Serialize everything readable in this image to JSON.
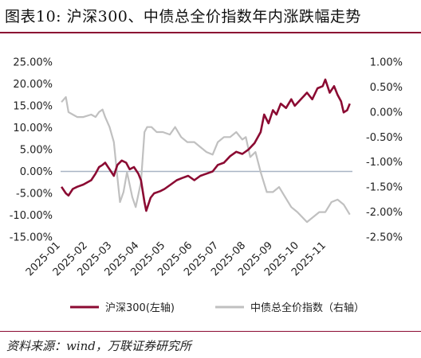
{
  "header": {
    "title": "图表10:  沪深300、中债总全价指数年内涨跌幅走势"
  },
  "footer": {
    "source": "资料来源：wind，万联证券研究所"
  },
  "colors": {
    "hs300": "#8b0a32",
    "bond": "#c0c0c0",
    "zero_line": "#a8b4c4",
    "rule": "#8b0a32"
  },
  "chart_data": {
    "type": "line",
    "x_ticks": [
      "2025-01",
      "2025-02",
      "2025-03",
      "2025-04",
      "2025-05",
      "2025-06",
      "2025-07",
      "2025-08",
      "2025-09",
      "2025-10",
      "2025-11"
    ],
    "y_left": {
      "ticks": [
        "25.00%",
        "20.00%",
        "15.00%",
        "10.00%",
        "5.00%",
        "0.00%",
        "-5.00%",
        "-10.00%",
        "-15.00%"
      ],
      "ylim": [
        -15,
        25
      ],
      "label": ""
    },
    "y_right": {
      "ticks": [
        "1.00%",
        "0.50%",
        "0.00%",
        "-0.50%",
        "-1.00%",
        "-1.50%",
        "-2.00%",
        "-2.50%"
      ],
      "ylim": [
        -2.5,
        1.0
      ],
      "label": ""
    },
    "legend": {
      "position": "bottom",
      "entries": [
        "沪深300(左轴)",
        "中债总全价指数（右轴）"
      ]
    },
    "series": [
      {
        "name": "沪深300(左轴)",
        "axis": "left",
        "x": [
          "2025-01-02",
          "2025-01-07",
          "2025-01-10",
          "2025-01-15",
          "2025-01-20",
          "2025-01-27",
          "2025-02-05",
          "2025-02-10",
          "2025-02-14",
          "2025-02-18",
          "2025-02-21",
          "2025-02-26",
          "2025-03-03",
          "2025-03-07",
          "2025-03-12",
          "2025-03-17",
          "2025-03-21",
          "2025-03-26",
          "2025-03-31",
          "2025-04-03",
          "2025-04-07",
          "2025-04-09",
          "2025-04-14",
          "2025-04-18",
          "2025-04-25",
          "2025-04-30",
          "2025-05-07",
          "2025-05-14",
          "2025-05-20",
          "2025-05-27",
          "2025-06-03",
          "2025-06-10",
          "2025-06-17",
          "2025-06-24",
          "2025-06-30",
          "2025-07-07",
          "2025-07-14",
          "2025-07-21",
          "2025-07-28",
          "2025-08-04",
          "2025-08-11",
          "2025-08-18",
          "2025-08-22",
          "2025-08-27",
          "2025-09-01",
          "2025-09-05",
          "2025-09-10",
          "2025-09-16",
          "2025-09-22",
          "2025-09-26",
          "2025-10-10",
          "2025-10-16",
          "2025-10-22",
          "2025-10-28",
          "2025-10-31",
          "2025-11-05",
          "2025-11-10",
          "2025-11-14",
          "2025-11-18",
          "2025-11-21",
          "2025-11-25",
          "2025-11-28"
        ],
        "values": [
          -3.5,
          -5.0,
          -5.5,
          -4.0,
          -3.5,
          -3.0,
          -2.0,
          -0.5,
          1.0,
          1.5,
          2.0,
          0.5,
          -1.0,
          1.5,
          2.5,
          2.0,
          0.5,
          1.0,
          -0.5,
          -2.0,
          -7.0,
          -9.0,
          -6.0,
          -5.0,
          -4.5,
          -4.0,
          -3.0,
          -2.0,
          -1.5,
          -1.0,
          -2.0,
          -1.0,
          -0.5,
          0.0,
          1.5,
          2.0,
          3.5,
          4.5,
          4.0,
          5.0,
          6.5,
          9.0,
          13.0,
          11.0,
          14.0,
          13.0,
          15.5,
          14.5,
          16.5,
          15.0,
          18.0,
          16.5,
          19.0,
          19.5,
          21.0,
          18.0,
          19.5,
          17.5,
          16.0,
          13.5,
          14.0,
          15.5
        ]
      },
      {
        "name": "中债总全价指数（右轴）",
        "axis": "right",
        "x": [
          "2025-01-02",
          "2025-01-07",
          "2025-01-10",
          "2025-01-15",
          "2025-01-20",
          "2025-01-27",
          "2025-02-05",
          "2025-02-10",
          "2025-02-14",
          "2025-02-18",
          "2025-02-21",
          "2025-02-26",
          "2025-03-03",
          "2025-03-07",
          "2025-03-10",
          "2025-03-14",
          "2025-03-18",
          "2025-03-24",
          "2025-03-28",
          "2025-04-03",
          "2025-04-07",
          "2025-04-10",
          "2025-04-15",
          "2025-04-21",
          "2025-04-28",
          "2025-05-06",
          "2025-05-12",
          "2025-05-19",
          "2025-05-26",
          "2025-06-03",
          "2025-06-10",
          "2025-06-17",
          "2025-06-24",
          "2025-06-30",
          "2025-07-07",
          "2025-07-14",
          "2025-07-21",
          "2025-07-28",
          "2025-08-01",
          "2025-08-06",
          "2025-08-12",
          "2025-08-18",
          "2025-08-25",
          "2025-09-01",
          "2025-09-08",
          "2025-09-15",
          "2025-09-22",
          "2025-09-29",
          "2025-10-10",
          "2025-10-17",
          "2025-10-24",
          "2025-10-31",
          "2025-11-07",
          "2025-11-14",
          "2025-11-21",
          "2025-11-28"
        ],
        "values": [
          0.2,
          0.3,
          0.0,
          -0.05,
          -0.1,
          -0.1,
          -0.05,
          -0.1,
          0.0,
          0.05,
          -0.1,
          -0.3,
          -0.6,
          -1.3,
          -1.8,
          -1.6,
          -1.2,
          -1.7,
          -1.9,
          -1.4,
          -0.4,
          -0.3,
          -0.3,
          -0.4,
          -0.4,
          -0.45,
          -0.3,
          -0.5,
          -0.6,
          -0.6,
          -0.7,
          -0.8,
          -0.85,
          -0.6,
          -0.5,
          -0.5,
          -0.4,
          -0.55,
          -0.5,
          -0.9,
          -0.8,
          -1.2,
          -1.6,
          -1.6,
          -1.5,
          -1.7,
          -1.9,
          -2.0,
          -2.2,
          -2.1,
          -2.0,
          -2.0,
          -1.8,
          -1.75,
          -1.85,
          -2.05
        ]
      }
    ]
  }
}
